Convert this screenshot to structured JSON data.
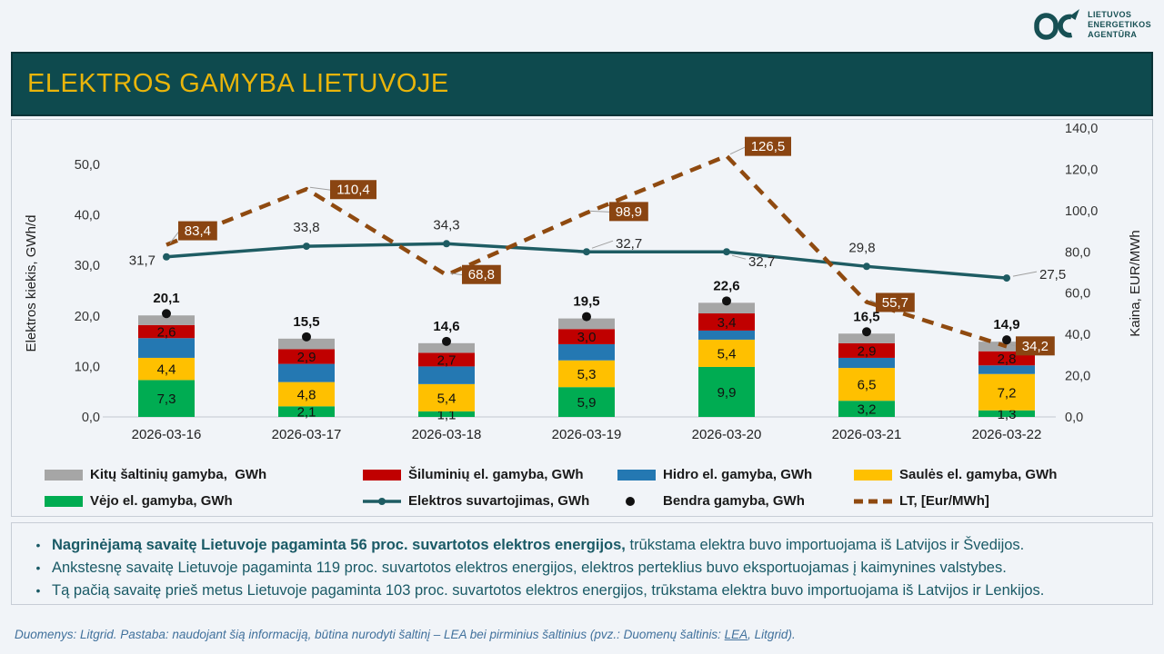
{
  "brand": {
    "name_lines": [
      "LIETUVOS",
      "ENERGETIKOS",
      "AGENTŪRA"
    ],
    "color": "#175054"
  },
  "header": {
    "title": "ELEKTROS GAMYBA LIETUVOJE",
    "bg_color": "#0E4A4E",
    "text_color": "#E9B50B"
  },
  "chart_data": {
    "type": "combo-stacked-bar-with-lines",
    "categories": [
      "2026-03-16",
      "2026-03-17",
      "2026-03-18",
      "2026-03-19",
      "2026-03-20",
      "2026-03-21",
      "2026-03-22"
    ],
    "bar_series": [
      {
        "name": "Vėjo el. gamyba, GWh",
        "color": "#00AC52",
        "values": [
          7.3,
          2.1,
          1.1,
          5.9,
          9.9,
          3.2,
          1.3
        ],
        "labels": [
          "7,3",
          "2,1",
          "1,1",
          "5,9",
          "9,9",
          "3,2",
          "1,3"
        ]
      },
      {
        "name": "Saulės el. gamyba, GWh",
        "color": "#FFC000",
        "values": [
          4.4,
          4.8,
          5.4,
          5.3,
          5.4,
          6.5,
          7.2
        ],
        "labels": [
          "4,4",
          "4,8",
          "5,4",
          "5,3",
          "5,4",
          "6,5",
          "7,2"
        ]
      },
      {
        "name": "Hidro el. gamyba, GWh",
        "color": "#2478B2",
        "values": [
          3.9,
          3.6,
          3.5,
          3.2,
          1.8,
          2.0,
          1.7
        ],
        "labels": null
      },
      {
        "name": "Šiluminių el. gamyba, GWh",
        "color": "#C00000",
        "values": [
          2.6,
          2.9,
          2.7,
          3.0,
          3.4,
          2.9,
          2.8
        ],
        "labels": [
          "2,6",
          "2,9",
          "2,7",
          "3,0",
          "3,4",
          "2,9",
          "2,8"
        ]
      },
      {
        "name": "Kitų šaltinių gamyba,  GWh",
        "color": "#A6A6A6",
        "values": [
          1.9,
          2.1,
          1.9,
          2.1,
          2.1,
          1.9,
          1.9
        ],
        "labels": null
      }
    ],
    "totals": {
      "name": "Bendra gamyba, GWh",
      "color": "#111111",
      "values": [
        20.1,
        15.5,
        14.6,
        19.5,
        22.6,
        16.5,
        14.9
      ],
      "labels": [
        "20,1",
        "15,5",
        "14,6",
        "19,5",
        "22,6",
        "16,5",
        "14,9"
      ]
    },
    "consumption": {
      "name": "Elektros suvartojimas, GWh",
      "color": "#1E5C63",
      "values": [
        31.7,
        33.8,
        34.3,
        32.7,
        32.7,
        29.8,
        27.5
      ],
      "labels": [
        "31,7",
        "33,8",
        "34,3",
        "32,7",
        "32,7",
        "29,8",
        "27,5"
      ]
    },
    "price": {
      "name": "LT, [Eur/MWh]",
      "color": "#8F4A10",
      "box_color": "#8A4512",
      "values": [
        83.4,
        110.4,
        68.8,
        98.9,
        126.5,
        55.7,
        34.2
      ],
      "labels": [
        "83,4",
        "110,4",
        "68,8",
        "98,9",
        "126,5",
        "55,7",
        "34,2"
      ]
    },
    "ylabel_left": "Elektros kiekis, GWh/d",
    "ylabel_right": "Kaina, EUR/MWh",
    "left_axis": {
      "range": [
        0,
        50
      ],
      "tick_values": [
        0,
        10,
        20,
        30,
        40,
        50
      ],
      "tick_labels": [
        "0,0",
        "10,0",
        "20,0",
        "30,0",
        "40,0",
        "50,0"
      ]
    },
    "right_axis": {
      "range": [
        0,
        140
      ],
      "tick_values": [
        0,
        20,
        40,
        60,
        80,
        100,
        120,
        140
      ],
      "tick_labels": [
        "0,0",
        "20,0",
        "40,0",
        "60,0",
        "80,0",
        "100,0",
        "120,0",
        "140,0"
      ]
    },
    "grid": false,
    "legend_position": "bottom"
  },
  "legend": {
    "rows": [
      [
        {
          "marker": "swatch",
          "color": "#A6A6A6",
          "label": "Kitų šaltinių gamyba,  GWh"
        },
        {
          "marker": "swatch",
          "color": "#C00000",
          "label": "Šiluminių el. gamyba, GWh"
        },
        {
          "marker": "swatch",
          "color": "#2478B2",
          "label": "Hidro el. gamyba, GWh"
        },
        {
          "marker": "swatch",
          "color": "#FFC000",
          "label": "Saulės el. gamyba, GWh"
        }
      ],
      [
        {
          "marker": "swatch",
          "color": "#00AC52",
          "label": "Vėjo el. gamyba, GWh"
        },
        {
          "marker": "line",
          "color": "#1E5C63",
          "label": "Elektros suvartojimas, GWh"
        },
        {
          "marker": "dot",
          "color": "#111111",
          "label": "Bendra gamyba, GWh"
        },
        {
          "marker": "dashes",
          "color": "#8F4A10",
          "label": "LT, [Eur/MWh]"
        }
      ]
    ]
  },
  "notes": {
    "items": [
      {
        "bold": "Nagrinėjamą savaitę Lietuvoje pagaminta 56 proc. suvartotos elektros energijos,",
        "text": " trūkstama elektra buvo importuojama iš Latvijos ir Švedijos."
      },
      {
        "bold": "",
        "text": "Ankstesnę savaitę Lietuvoje pagaminta 119 proc. suvartotos elektros energijos, elektros perteklius buvo eksportuojamas į kaimynines valstybes."
      },
      {
        "bold": "",
        "text": "Tą pačią savaitę prieš metus Lietuvoje pagaminta 103 proc. suvartotos elektros energijos, trūkstama elektra buvo importuojama iš Latvijos ir Lenkijos."
      }
    ]
  },
  "footer": {
    "pre": "Duomenys: Litgrid. Pastaba: naudojant šią informaciją, būtina nurodyti šaltinį – LEA bei pirminius šaltinius (pvz.: Duomenų šaltinis: ",
    "link": "LEA",
    "post": ", Litgrid)."
  }
}
